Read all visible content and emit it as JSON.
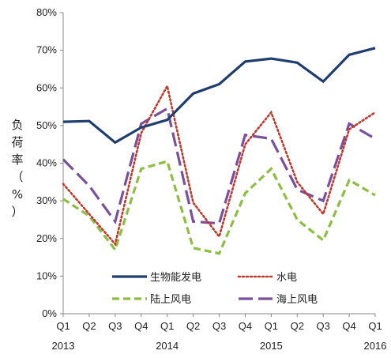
{
  "chart_data": {
    "type": "line",
    "ylabel": [
      "负",
      "荷",
      "率",
      "（",
      "%",
      "）"
    ],
    "y_ticks": [
      "0%",
      "10%",
      "20%",
      "30%",
      "40%",
      "50%",
      "60%",
      "70%",
      "80%"
    ],
    "ylim": [
      0,
      80
    ],
    "quarters": [
      "Q1",
      "Q2",
      "Q3",
      "Q4",
      "Q1",
      "Q2",
      "Q3",
      "Q4",
      "Q1",
      "Q2",
      "Q3",
      "Q4",
      "Q1"
    ],
    "years": [
      {
        "label": "2013",
        "index": 0
      },
      {
        "label": "2014",
        "index": 4
      },
      {
        "label": "2015",
        "index": 8
      },
      {
        "label": "2016",
        "index": 12
      }
    ],
    "legend_placement": "bottom-center",
    "grid": false,
    "series": [
      {
        "name": "生物能发电",
        "color": "#1f3d6e",
        "style": "solid",
        "values": [
          51,
          51.2,
          45.5,
          49.5,
          51.5,
          58.5,
          61,
          67,
          67.8,
          66.7,
          61.7,
          68.8,
          70.6
        ]
      },
      {
        "name": "水电",
        "color": "#c0392b",
        "style": "dotted",
        "values": [
          34.5,
          26.5,
          18.5,
          48,
          60.5,
          29.5,
          20.5,
          45,
          53.5,
          35,
          26.5,
          49,
          53.5
        ]
      },
      {
        "name": "陆上风电",
        "color": "#8cbf3f",
        "style": "dashed",
        "values": [
          30.5,
          26,
          17,
          38.5,
          40.5,
          17.5,
          16,
          32,
          38.5,
          25,
          19.5,
          35.5,
          31.5
        ]
      },
      {
        "name": "海上风电",
        "color": "#7b4f9e",
        "style": "longdash",
        "values": [
          41,
          34,
          24.5,
          50.5,
          54.5,
          24.5,
          24,
          47.5,
          46.5,
          33,
          30,
          50.5,
          46.5
        ]
      }
    ]
  }
}
